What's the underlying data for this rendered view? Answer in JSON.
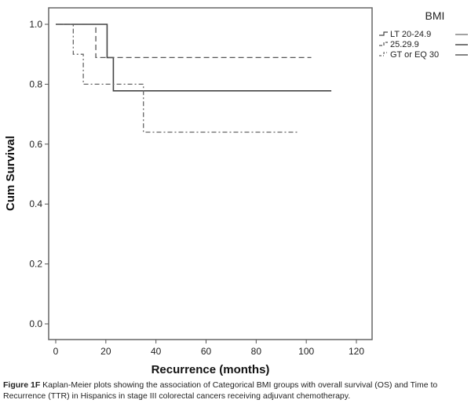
{
  "chart_data": {
    "type": "line",
    "subtype": "kaplan-meier",
    "xlabel": "Recurrence (months)",
    "ylabel": "Cum Survival",
    "xlim": [
      -8,
      127
    ],
    "ylim": [
      -0.05,
      1.055
    ],
    "xticks": [
      0,
      20,
      40,
      60,
      80,
      100,
      120
    ],
    "yticks": [
      0.0,
      0.2,
      0.4,
      0.6,
      0.8,
      1.0
    ],
    "ytick_labels": [
      "0.0",
      "0.2",
      "0.4",
      "0.6",
      "0.8",
      "1.0"
    ],
    "grid": false,
    "legend_title": "BMI",
    "legend_placement": "right-outside-top",
    "series": [
      {
        "name": "LT 20-24.9",
        "style": "solid",
        "color": "#444444",
        "steps": [
          [
            0,
            1.0
          ],
          [
            20.5,
            0.889
          ],
          [
            23,
            0.778
          ]
        ],
        "end": 110
      },
      {
        "name": "25.29.9",
        "style": "dashed",
        "color": "#555555",
        "steps": [
          [
            0,
            1.0
          ],
          [
            16,
            0.889
          ]
        ],
        "end": 102
      },
      {
        "name": "GT or EQ 30",
        "style": "dashdot",
        "color": "#666666",
        "steps": [
          [
            0,
            1.0
          ],
          [
            7,
            0.9
          ],
          [
            11,
            0.8
          ],
          [
            35,
            0.64
          ]
        ],
        "end": 97
      }
    ]
  },
  "caption": {
    "label": "Figure 1F",
    "text": " Kaplan-Meier plots showing the association of Categorical BMI groups with overall survival (OS) and Time to Recurrence (TTR) in Hispanics in stage III colorectal cancers receiving adjuvant chemotherapy."
  }
}
